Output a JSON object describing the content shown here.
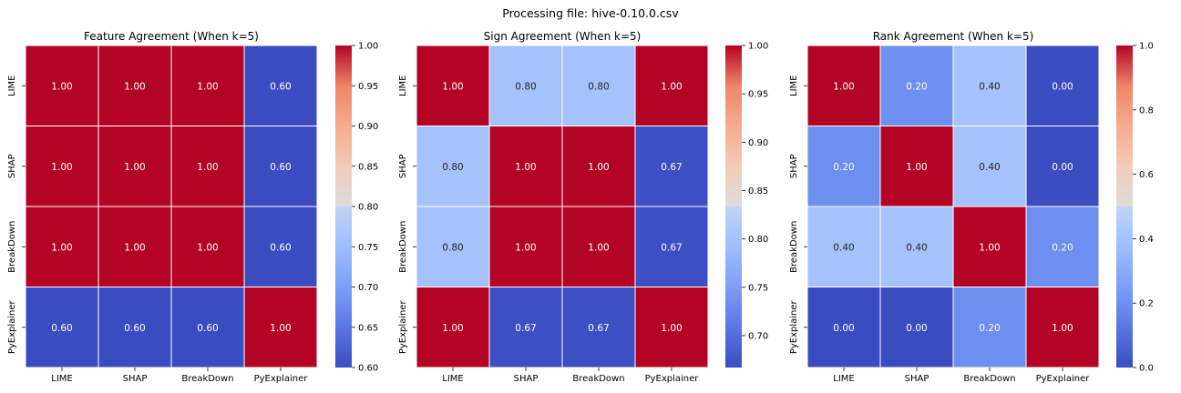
{
  "suptitle": "Processing file: hive-0.10.0.csv",
  "chart_data": [
    {
      "type": "heatmap",
      "title": "Feature Agreement (When k=5)",
      "rows": [
        "LIME",
        "SHAP",
        "BreakDown",
        "PyExplainer"
      ],
      "cols": [
        "LIME",
        "SHAP",
        "BreakDown",
        "PyExplainer"
      ],
      "values": [
        [
          1.0,
          1.0,
          1.0,
          0.6
        ],
        [
          1.0,
          1.0,
          1.0,
          0.6
        ],
        [
          1.0,
          1.0,
          1.0,
          0.6
        ],
        [
          0.6,
          0.6,
          0.6,
          1.0
        ]
      ],
      "colorbar": {
        "min": 0.6,
        "max": 1.0,
        "ticks": [
          0.6,
          0.65,
          0.7,
          0.75,
          0.8,
          0.85,
          0.9,
          0.95,
          1.0
        ],
        "tick_labels": [
          "0.60",
          "0.65",
          "0.70",
          "0.75",
          "0.80",
          "0.85",
          "0.90",
          "0.95",
          "1.00"
        ]
      },
      "colormap": "coolwarm",
      "annotation_format": "0.00"
    },
    {
      "type": "heatmap",
      "title": "Sign Agreement (When k=5)",
      "rows": [
        "LIME",
        "SHAP",
        "BreakDown",
        "PyExplainer"
      ],
      "cols": [
        "LIME",
        "SHAP",
        "BreakDown",
        "PyExplainer"
      ],
      "values": [
        [
          1.0,
          0.8,
          0.8,
          1.0
        ],
        [
          0.8,
          1.0,
          1.0,
          0.67
        ],
        [
          0.8,
          1.0,
          1.0,
          0.67
        ],
        [
          1.0,
          0.67,
          0.67,
          1.0
        ]
      ],
      "colorbar": {
        "min": 0.667,
        "max": 1.0,
        "ticks": [
          0.7,
          0.75,
          0.8,
          0.85,
          0.9,
          0.95,
          1.0
        ],
        "tick_labels": [
          "0.70",
          "0.75",
          "0.80",
          "0.85",
          "0.90",
          "0.95",
          "1.00"
        ]
      },
      "colormap": "coolwarm",
      "annotation_format": "0.00"
    },
    {
      "type": "heatmap",
      "title": "Rank Agreement (When k=5)",
      "rows": [
        "LIME",
        "SHAP",
        "BreakDown",
        "PyExplainer"
      ],
      "cols": [
        "LIME",
        "SHAP",
        "BreakDown",
        "PyExplainer"
      ],
      "values": [
        [
          1.0,
          0.2,
          0.4,
          0.0
        ],
        [
          0.2,
          1.0,
          0.4,
          0.0
        ],
        [
          0.4,
          0.4,
          1.0,
          0.2
        ],
        [
          0.0,
          0.0,
          0.2,
          1.0
        ]
      ],
      "colorbar": {
        "min": 0.0,
        "max": 1.0,
        "ticks": [
          0.0,
          0.2,
          0.4,
          0.6,
          0.8,
          1.0
        ],
        "tick_labels": [
          "0.0",
          "0.2",
          "0.4",
          "0.6",
          "0.8",
          "1.0"
        ]
      },
      "colormap": "coolwarm",
      "annotation_format": "0.00"
    }
  ]
}
